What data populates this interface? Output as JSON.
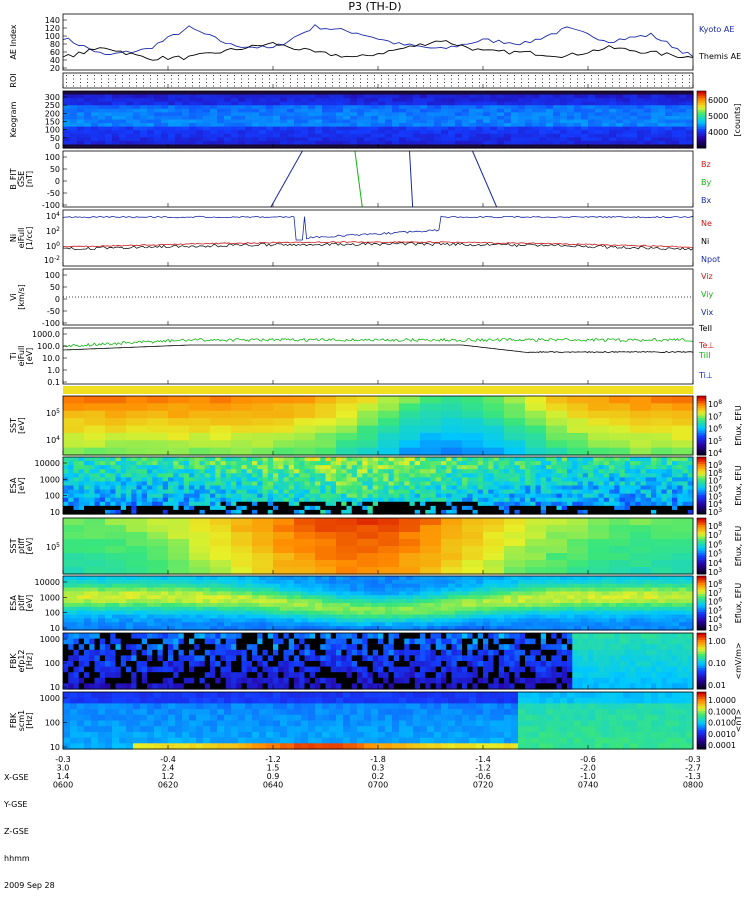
{
  "title": "P3 (TH-D)",
  "date_label": "2009 Sep 28",
  "colors": {
    "kyoto": "#1a2aa8",
    "themis": "#000000",
    "red": "#c81818",
    "green": "#12b312",
    "blue": "#1a2aa8"
  },
  "chart_data": [
    {
      "type": "line",
      "panel": "ae",
      "ylabel": "AE Index",
      "yticks": [
        "140",
        "120",
        "100",
        "80",
        "60",
        "40",
        "20"
      ],
      "ylim": [
        10,
        145
      ],
      "x": [
        0,
        4,
        8,
        12,
        16,
        20,
        24,
        28,
        32,
        36,
        40,
        44,
        48,
        52,
        56,
        60
      ],
      "series": [
        {
          "name": "Kyoto AE",
          "values": [
            88,
            45,
            60,
            112,
            70,
            62,
            115,
            100,
            72,
            60,
            82,
            74,
            110,
            80,
            95,
            42
          ]
        },
        {
          "name": "Themis AE",
          "values": [
            40,
            65,
            38,
            40,
            58,
            74,
            52,
            40,
            60,
            82,
            55,
            52,
            44,
            64,
            52,
            40
          ]
        }
      ]
    },
    {
      "type": "heatmap",
      "panel": "roi",
      "ylabel": "ROI"
    },
    {
      "type": "heatmap",
      "panel": "keogram",
      "ylabel": "Keogram",
      "yticks": [
        "300",
        "250",
        "200",
        "150",
        "100",
        "50",
        "0"
      ],
      "colorbar": {
        "label": "[counts]",
        "ticks": [
          "6000",
          "5000",
          "4000"
        ]
      }
    },
    {
      "type": "line",
      "panel": "bfit",
      "ylabel": "B_FIT",
      "ylabel2": "GSE",
      "ylabel3": "[nT]",
      "yticks": [
        "100",
        "50",
        "0",
        "-50",
        "-100"
      ],
      "ylim": [
        -130,
        100
      ],
      "series": [
        {
          "name": "Bz",
          "x": [
            19.8,
            22.8
          ],
          "values": [
            -130,
            100
          ]
        },
        {
          "name": "By",
          "x": [
            27.8,
            28.5
          ],
          "values": [
            100,
            -130
          ]
        },
        {
          "name": "Bx",
          "x": [
            33.0,
            33.3
          ],
          "values": [
            100,
            -130
          ]
        },
        {
          "name": "Bx",
          "x": [
            39.0,
            41.3
          ],
          "values": [
            100,
            -130
          ]
        }
      ],
      "legend": [
        "Bz",
        "By",
        "Bx"
      ]
    },
    {
      "type": "line",
      "panel": "ni",
      "ylabel": "Ni",
      "ylabel2": "eiFull",
      "ylabel3": "[1/cc]",
      "ytick_base": [
        "10",
        "10",
        "10"
      ],
      "ytick_exp": [
        "4",
        "2",
        "0"
      ],
      "ytick_bottom": "10",
      "ytick_bottom_exp": "-2",
      "legend": [
        "Ne",
        "Ni",
        "Npot"
      ]
    },
    {
      "type": "line",
      "panel": "vi",
      "ylabel": "Vi",
      "ylabel2": "[km/s]",
      "yticks": [
        "100",
        "50",
        "0",
        "-50",
        "-100"
      ],
      "ylim": [
        -130,
        130
      ],
      "legend": [
        "Vix",
        "Viy",
        "Viz"
      ]
    },
    {
      "type": "line",
      "panel": "ti",
      "ylabel": "Ti",
      "ylabel2": "eiFull",
      "ylabel3": "[eV]",
      "yticks": [
        "1000.0",
        "100.0",
        "10.0",
        "1.0",
        "0.1"
      ],
      "legend": [
        "TeII",
        "Te⊥",
        "TiII",
        "Ti⊥"
      ]
    },
    {
      "type": "heatmap",
      "panel": "sst_e",
      "ylabel": "SST",
      "ylabel2": "[eV]",
      "ytick_base": [
        "10",
        "10"
      ],
      "ytick_exp": [
        "5",
        "4"
      ],
      "colorbar": {
        "label": "Eflux, EFU",
        "base": "10",
        "exps": [
          "8",
          "7",
          "6",
          "5",
          "4"
        ]
      }
    },
    {
      "type": "heatmap",
      "panel": "esa_e",
      "ylabel": "ESA",
      "ylabel2": "[eV]",
      "yticks": [
        "10000",
        "1000",
        "100",
        "10"
      ],
      "colorbar": {
        "label": "Eflux, EFU",
        "base": "10",
        "exps": [
          "9",
          "8",
          "7",
          "6",
          "5",
          "4",
          "3"
        ]
      }
    },
    {
      "type": "heatmap",
      "panel": "sst_i",
      "ylabel": "SST",
      "ylabel2": "ptiff",
      "ylabel3": "[eV]",
      "ytick_base": [
        "10"
      ],
      "ytick_exp": [
        "5"
      ],
      "colorbar": {
        "label": "Eflux, EFU",
        "base": "10",
        "exps": [
          "8",
          "7",
          "6",
          "5",
          "4",
          "3"
        ]
      }
    },
    {
      "type": "heatmap",
      "panel": "esa_i",
      "ylabel": "ESA",
      "ylabel2": "ptiff",
      "ylabel3": "[eV]",
      "yticks": [
        "10000",
        "1000",
        "100",
        "10"
      ],
      "colorbar": {
        "label": "Eflux, EFU",
        "base": "10",
        "exps": [
          "8",
          "7",
          "6",
          "5",
          "4",
          "3"
        ]
      }
    },
    {
      "type": "heatmap",
      "panel": "fbk1",
      "ylabel": "FBK",
      "ylabel2": "efp12",
      "ylabel3": "[Hz]",
      "yticks": [
        "1000",
        "100",
        "10"
      ],
      "colorbar": {
        "label": "<mV/m>",
        "ticks": [
          "1.00",
          "0.10",
          "0.01"
        ]
      }
    },
    {
      "type": "heatmap",
      "panel": "fbk2",
      "ylabel": "FBK",
      "ylabel2": "scm1",
      "ylabel3": "[Hz]",
      "yticks": [
        "1000",
        "100",
        "10"
      ],
      "colorbar": {
        "label": "<nT>",
        "ticks": [
          "1.0000",
          "0.1000",
          "0.0100",
          "0.0010",
          "0.0001"
        ]
      }
    }
  ],
  "footer": {
    "row_labels": [
      "X-GSE",
      "Y-GSE",
      "Z-GSE",
      "hhmm"
    ],
    "columns": [
      [
        "-0.3",
        "3.0",
        "1.4",
        "0600"
      ],
      [
        "-0.4",
        "2.4",
        "1.2",
        "0620"
      ],
      [
        "-1.2",
        "1.5",
        "0.9",
        "0640"
      ],
      [
        "-1.8",
        "0.3",
        "0.2",
        "0700"
      ],
      [
        "-1.4",
        "-1.2",
        "-0.6",
        "0720"
      ],
      [
        "-0.6",
        "-2.0",
        "-1.0",
        "0740"
      ],
      [
        "-0.3",
        "-2.7",
        "-1.3",
        "0800"
      ]
    ]
  }
}
